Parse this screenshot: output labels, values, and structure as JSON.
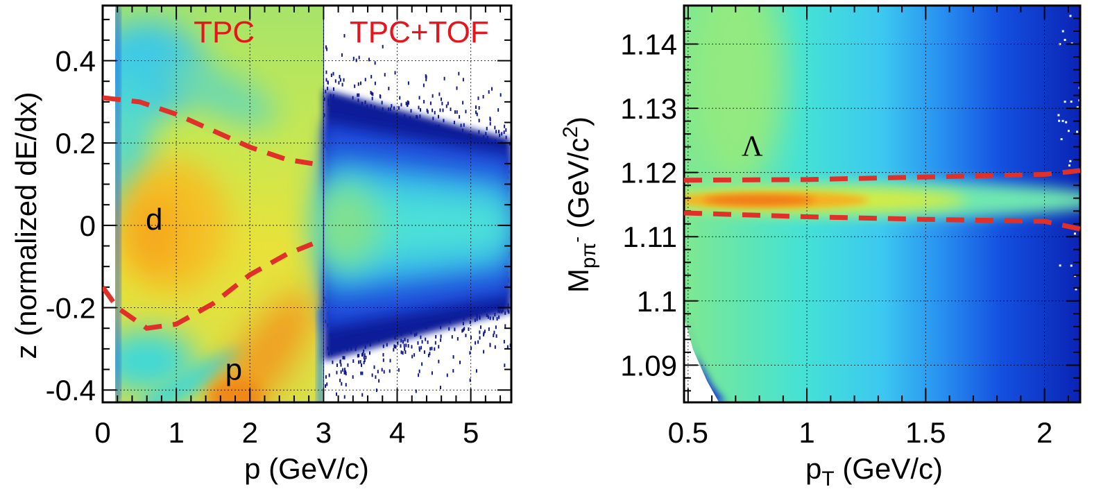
{
  "chart_data": [
    {
      "type": "heatmap",
      "xlabel": "p (GeV/c)",
      "ylabel": "z (normalized dE/dx)",
      "xlim": [
        0,
        5.55
      ],
      "ylim": [
        -0.43,
        0.534
      ],
      "xticks": [
        "0",
        "1",
        "2",
        "3",
        "4",
        "5"
      ],
      "xtick_values": [
        0,
        1,
        2,
        3,
        4,
        5
      ],
      "yticks": [
        "-0.4",
        "-0.2",
        "0",
        "0.2",
        "0.4"
      ],
      "ytick_values": [
        -0.4,
        -0.2,
        0,
        0.2,
        0.4
      ],
      "grid": true,
      "colormap": "rainbow",
      "region_boundary_p": 3.0,
      "annotations": [
        {
          "text": "TPC",
          "x": 1.65,
          "y": 0.445,
          "color": "#e8141c"
        },
        {
          "text": "TPC+TOF",
          "x": 4.3,
          "y": 0.445,
          "color": "#e8141c"
        },
        {
          "text": "d",
          "x": 0.7,
          "y": -0.01,
          "color": "#000000"
        },
        {
          "text": "p",
          "x": 1.78,
          "y": -0.375,
          "color": "#000000"
        }
      ],
      "cut_lines": {
        "color": "#e0302a",
        "style": "dashed",
        "upper": [
          [
            0,
            0.31
          ],
          [
            0.5,
            0.3
          ],
          [
            1.0,
            0.27
          ],
          [
            1.5,
            0.23
          ],
          [
            2.0,
            0.19
          ],
          [
            2.5,
            0.16
          ],
          [
            2.85,
            0.15
          ]
        ],
        "lower": [
          [
            0,
            -0.15
          ],
          [
            0.2,
            -0.2
          ],
          [
            0.6,
            -0.25
          ],
          [
            1.0,
            -0.24
          ],
          [
            1.5,
            -0.19
          ],
          [
            2.0,
            -0.12
          ],
          [
            2.5,
            -0.07
          ],
          [
            2.85,
            -0.045
          ]
        ]
      }
    },
    {
      "type": "heatmap",
      "xlabel": "p_T (GeV/c)",
      "ylabel": "M_{pπ^-} (GeV/c^2)",
      "xlim": [
        0.483,
        2.15
      ],
      "ylim": [
        1.0842,
        1.146
      ],
      "xticks": [
        "0.5",
        "1",
        "1.5",
        "2"
      ],
      "xtick_values": [
        0.5,
        1,
        1.5,
        2
      ],
      "yticks": [
        "1.09",
        "1.1",
        "1.11",
        "1.12",
        "1.13",
        "1.14"
      ],
      "ytick_values": [
        1.09,
        1.1,
        1.11,
        1.12,
        1.13,
        1.14
      ],
      "grid": true,
      "colormap": "rainbow",
      "annotations": [
        {
          "text": "Λ",
          "x": 0.77,
          "y": 1.1226,
          "color": "#000000"
        }
      ],
      "cut_lines": {
        "color": "#e0302a",
        "style": "dashed",
        "upper": [
          [
            0.483,
            1.1188
          ],
          [
            1.0,
            1.1189
          ],
          [
            1.5,
            1.1193
          ],
          [
            2.0,
            1.1197
          ],
          [
            2.15,
            1.1203
          ]
        ],
        "lower": [
          [
            0.483,
            1.1137
          ],
          [
            1.0,
            1.1131
          ],
          [
            1.5,
            1.1127
          ],
          [
            2.0,
            1.1124
          ],
          [
            2.15,
            1.1112
          ]
        ]
      }
    }
  ]
}
